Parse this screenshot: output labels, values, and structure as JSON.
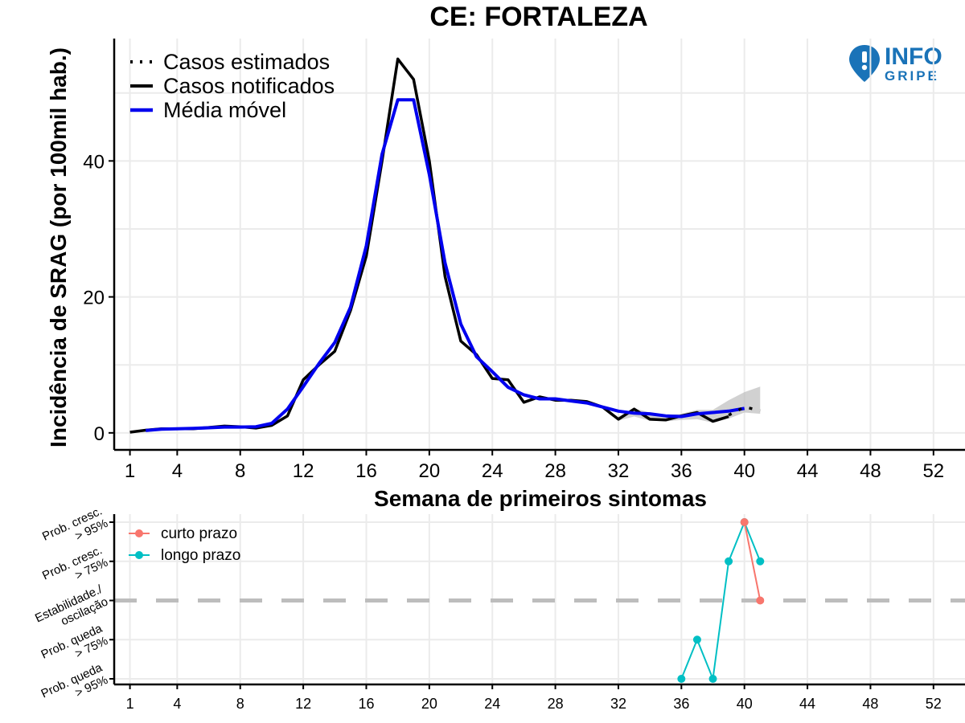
{
  "title": "CE: FORTALEZA",
  "logo": {
    "line1": "INFO",
    "line2": "GRIPE",
    "icon": "location-pin-exclamation-icon",
    "color": "#1a73b8"
  },
  "colors": {
    "estimated": "#000000",
    "notified": "#000000",
    "moving_avg": "#0000ee",
    "short_term": "#f8766d",
    "long_term": "#00bfc4",
    "band": "#bdbdbd"
  },
  "chart_data": [
    {
      "type": "line",
      "xlabel": "Semana de primeiros sintomas",
      "ylabel": "Incidência de SRAG (por 100mil hab.)",
      "xlim": [
        0,
        54
      ],
      "ylim": [
        -2.5,
        58
      ],
      "xticks": [
        1,
        4,
        8,
        12,
        16,
        20,
        24,
        28,
        32,
        36,
        40,
        44,
        48,
        52
      ],
      "yticks": [
        0,
        20,
        40
      ],
      "legend_position": "top-left",
      "legend": [
        "Casos estimados",
        "Casos notificados",
        "Média móvel"
      ],
      "series": [
        {
          "name": "Casos notificados",
          "x": [
            1,
            2,
            3,
            4,
            5,
            6,
            7,
            8,
            9,
            10,
            11,
            12,
            13,
            14,
            15,
            16,
            17,
            18,
            19,
            20,
            21,
            22,
            23,
            24,
            25,
            26,
            27,
            28,
            29,
            30,
            31,
            32,
            33,
            34,
            35,
            36,
            37,
            38,
            39
          ],
          "values": [
            0.1,
            0.4,
            0.6,
            0.6,
            0.6,
            0.8,
            1.0,
            0.9,
            0.7,
            1.1,
            2.5,
            7.8,
            10.0,
            12.0,
            18.0,
            26.0,
            40.0,
            55.0,
            52.0,
            40.0,
            23.0,
            13.5,
            11.5,
            8.0,
            7.8,
            4.5,
            5.3,
            4.8,
            4.8,
            4.6,
            3.8,
            2.0,
            3.5,
            2.0,
            1.9,
            2.5,
            3.0,
            1.7,
            2.4
          ]
        },
        {
          "name": "Média móvel",
          "x": [
            2,
            3,
            4,
            5,
            6,
            7,
            8,
            9,
            10,
            11,
            12,
            13,
            14,
            15,
            16,
            17,
            18,
            19,
            20,
            21,
            22,
            23,
            24,
            25,
            26,
            27,
            28,
            29,
            30,
            31,
            32,
            33,
            34,
            35,
            36,
            37,
            38,
            39,
            40
          ],
          "values": [
            0.35,
            0.55,
            0.6,
            0.65,
            0.75,
            0.85,
            0.85,
            0.9,
            1.4,
            3.5,
            6.8,
            10.2,
            13.3,
            18.5,
            27.5,
            41.0,
            49.0,
            49.0,
            38.0,
            25.0,
            16.0,
            11.2,
            9.0,
            6.7,
            5.6,
            5.0,
            5.0,
            4.7,
            4.4,
            3.8,
            3.2,
            2.9,
            2.8,
            2.5,
            2.4,
            2.8,
            3.0,
            3.2,
            3.6
          ]
        },
        {
          "name": "Casos estimados",
          "x": [
            39,
            40,
            41
          ],
          "values": [
            2.6,
            3.8,
            3.3
          ],
          "band": {
            "x": [
              32,
              33,
              34,
              35,
              36,
              37,
              38,
              39,
              40,
              41
            ],
            "lower": [
              1.8,
              2.4,
              1.8,
              1.7,
              1.9,
              2.0,
              1.5,
              2.1,
              3.0,
              2.8
            ],
            "upper": [
              2.4,
              3.6,
              3.0,
              2.6,
              2.8,
              3.4,
              3.4,
              4.8,
              6.0,
              6.8
            ]
          }
        }
      ]
    },
    {
      "type": "line",
      "xlim": [
        0,
        54
      ],
      "xticks": [
        1,
        4,
        8,
        12,
        16,
        20,
        24,
        28,
        32,
        36,
        40,
        44,
        48,
        52
      ],
      "ycategories": [
        "Prob. queda\n> 95%",
        "Prob. queda\n> 75%",
        "Estabilidade./\noscilação",
        "Prob. cresc.\n> 75%",
        "Prob. cresc.\n> 95%"
      ],
      "yvalues": [
        -2,
        -1,
        0,
        1,
        2
      ],
      "reference_line": 0,
      "legend_position": "top-left",
      "legend": [
        "curto prazo",
        "longo prazo"
      ],
      "series": [
        {
          "name": "curto prazo",
          "x": [
            40,
            41
          ],
          "values": [
            2,
            0
          ]
        },
        {
          "name": "longo prazo",
          "x": [
            36,
            37,
            38,
            39,
            40,
            41
          ],
          "values": [
            -2,
            -1,
            -2,
            1,
            2,
            1
          ]
        }
      ]
    }
  ]
}
